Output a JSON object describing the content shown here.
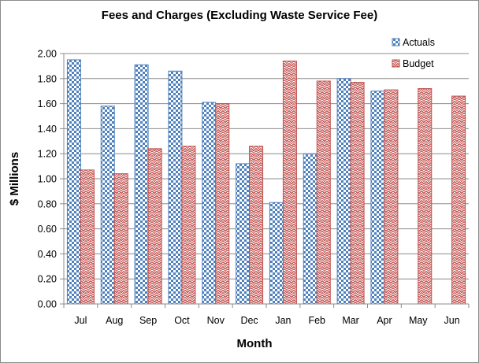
{
  "chart_data": {
    "type": "bar",
    "title": "Fees and Charges (Excluding  Waste Service Fee)",
    "xlabel": "Month",
    "ylabel": "$ Millions",
    "categories": [
      "Jul",
      "Aug",
      "Sep",
      "Oct",
      "Nov",
      "Dec",
      "Jan",
      "Feb",
      "Mar",
      "Apr",
      "May",
      "Jun"
    ],
    "series": [
      {
        "name": "Actuals",
        "color": "#4f81bd",
        "pattern": "checkerboard",
        "values": [
          1.95,
          1.58,
          1.91,
          1.86,
          1.61,
          1.12,
          0.81,
          1.2,
          1.8,
          1.7,
          null,
          null
        ]
      },
      {
        "name": "Budget",
        "color": "#c0504d",
        "pattern": "zigzag",
        "values": [
          1.07,
          1.04,
          1.24,
          1.26,
          1.6,
          1.26,
          1.94,
          1.78,
          1.77,
          1.71,
          1.72,
          1.66
        ]
      }
    ],
    "ylim": [
      0,
      2.0
    ],
    "ytick_labels": [
      "0.00",
      "0.20",
      "0.40",
      "0.60",
      "0.80",
      "1.00",
      "1.20",
      "1.40",
      "1.60",
      "1.80",
      "2.00"
    ],
    "grid": true,
    "legend_position": "top-right"
  }
}
